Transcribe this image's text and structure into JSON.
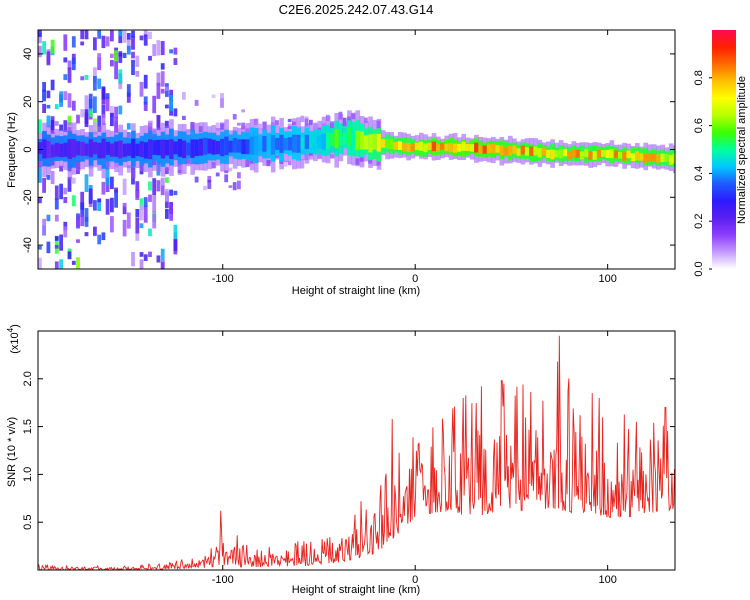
{
  "title": "C2E6.2025.242.07.43.G14",
  "chart_data": [
    {
      "type": "heatmap",
      "name": "spectrogram",
      "xlabel": "Height of straight line (km)",
      "ylabel": "Frequency (Hz)",
      "xlim": [
        -196,
        135
      ],
      "ylim": [
        -50,
        50
      ],
      "xticks": [
        -100,
        0,
        100
      ],
      "xtick_labels": [
        "-100",
        "0",
        "100"
      ],
      "yticks": [
        -40,
        -20,
        0,
        20,
        40
      ],
      "ytick_labels": [
        "-40",
        "-20",
        "0",
        "20",
        "40"
      ],
      "colorbar": {
        "label": "Normalized spectral amplitude",
        "range": [
          0.0,
          1.0
        ],
        "ticks": [
          0.0,
          0.2,
          0.4,
          0.6,
          0.8
        ],
        "tick_labels": [
          "0.0",
          "0.2",
          "0.4",
          "0.6",
          "0.8"
        ],
        "colormap": [
          "#ffffff",
          "#c49bff",
          "#8d3cff",
          "#5b1ff0",
          "#2c1aff",
          "#1f5bff",
          "#00c8ff",
          "#00ff9c",
          "#3cff00",
          "#b8ff00",
          "#ffff00",
          "#ffbf00",
          "#ff6a00",
          "#ff2000",
          "#ff0a50"
        ]
      },
      "center_line": {
        "x": [
          -196,
          -150,
          -100,
          -80,
          -60,
          -45,
          -35,
          -25,
          -15,
          0,
          20,
          40,
          60,
          80,
          100,
          120,
          135
        ],
        "y": [
          0,
          0,
          1,
          2,
          3,
          4,
          5,
          3,
          2,
          1,
          1,
          0,
          -1,
          -2,
          -2,
          -3,
          -4
        ]
      },
      "amplitude_profile": {
        "x": [
          -196,
          -130,
          -100,
          -60,
          -40,
          -30,
          -20,
          0,
          20,
          50,
          80,
          110,
          135
        ],
        "values": [
          0.25,
          0.3,
          0.35,
          0.45,
          0.6,
          0.65,
          0.75,
          0.85,
          0.9,
          0.85,
          0.82,
          0.85,
          0.8
        ]
      }
    },
    {
      "type": "line",
      "name": "snr",
      "xlabel": "Height of straight line (km)",
      "ylabel": "SNR (10 * v/v)",
      "scale_label": "(x10",
      "scale_exponent": "4",
      "xlim": [
        -196,
        135
      ],
      "ylim": [
        0,
        2.5
      ],
      "xticks": [
        -100,
        0,
        100
      ],
      "xtick_labels": [
        "-100",
        "0",
        "100"
      ],
      "yticks": [
        0.5,
        1.0,
        1.5,
        2.0
      ],
      "ytick_labels": [
        "0.5",
        "1.0",
        "1.5",
        "2.0"
      ],
      "color": "#e8231d",
      "envelope": {
        "x": [
          -196,
          -150,
          -130,
          -110,
          -100,
          -90,
          -70,
          -50,
          -40,
          -30,
          -20,
          -10,
          0,
          10,
          20,
          30,
          40,
          50,
          60,
          70,
          80,
          90,
          100,
          110,
          120,
          130,
          135
        ],
        "low": [
          0.0,
          0.0,
          0.01,
          0.02,
          0.04,
          0.03,
          0.03,
          0.05,
          0.08,
          0.12,
          0.18,
          0.35,
          0.55,
          0.6,
          0.6,
          0.55,
          0.6,
          0.65,
          0.6,
          0.65,
          0.6,
          0.6,
          0.55,
          0.55,
          0.6,
          0.6,
          0.65
        ],
        "high": [
          0.05,
          0.04,
          0.08,
          0.15,
          0.4,
          0.35,
          0.3,
          0.3,
          0.45,
          0.6,
          0.8,
          1.3,
          1.4,
          1.5,
          1.7,
          1.9,
          1.95,
          2.0,
          1.9,
          2.3,
          2.0,
          1.8,
          1.8,
          1.6,
          1.5,
          1.6,
          1.5
        ]
      },
      "peaks": [
        {
          "x": -101,
          "y": 0.62
        },
        {
          "x": -28,
          "y": 0.72
        },
        {
          "x": -12,
          "y": 1.58
        },
        {
          "x": 45,
          "y": 1.98
        },
        {
          "x": 75,
          "y": 2.45
        },
        {
          "x": 92,
          "y": 1.85
        },
        {
          "x": 130,
          "y": 1.7
        }
      ]
    }
  ]
}
